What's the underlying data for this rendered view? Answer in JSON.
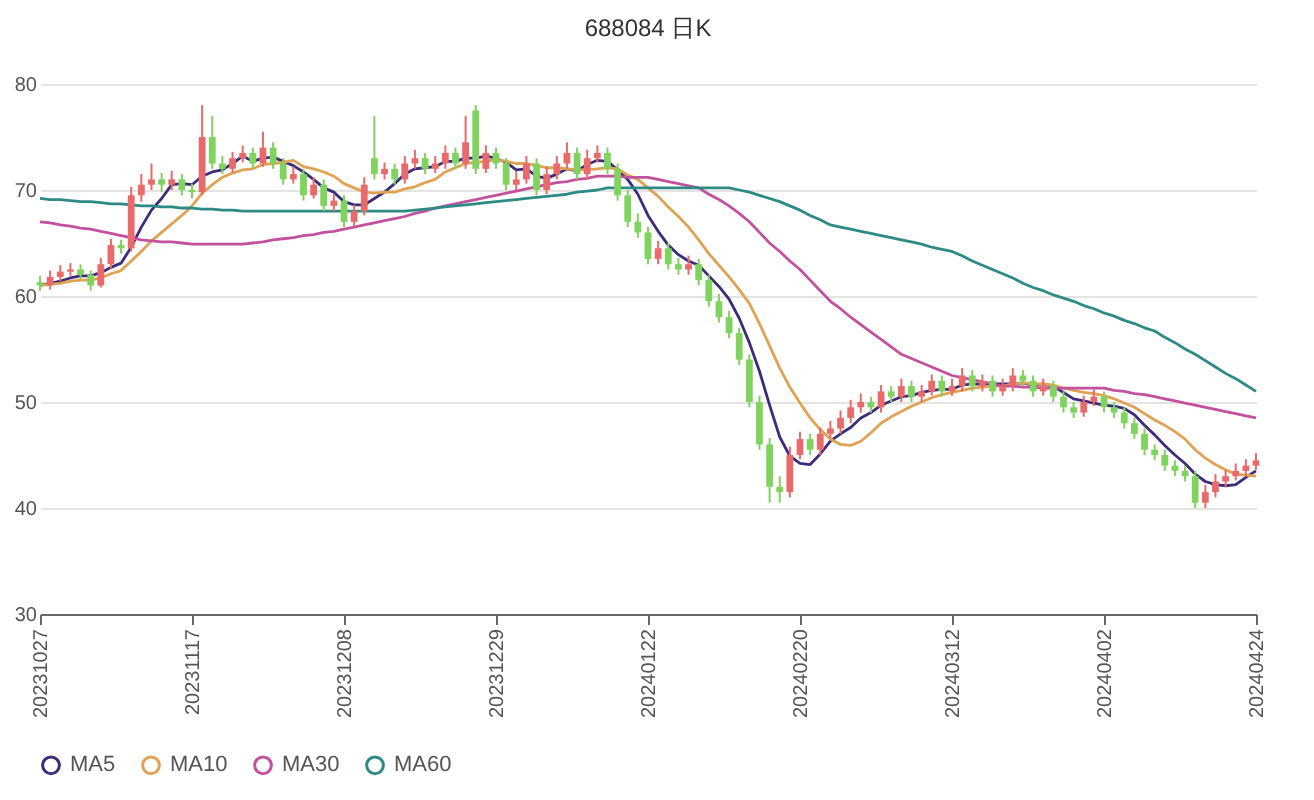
{
  "chart_data": {
    "type": "candlestick",
    "title": "688084  日K",
    "categories": [
      "20231027",
      null,
      null,
      null,
      null,
      null,
      null,
      null,
      null,
      null,
      null,
      null,
      null,
      null,
      null,
      "20231117",
      null,
      null,
      null,
      null,
      null,
      null,
      null,
      null,
      null,
      null,
      null,
      null,
      null,
      null,
      "20231208",
      null,
      null,
      null,
      null,
      null,
      null,
      null,
      null,
      null,
      null,
      null,
      null,
      null,
      null,
      "20231229",
      null,
      null,
      null,
      null,
      null,
      null,
      null,
      null,
      null,
      null,
      null,
      null,
      null,
      null,
      "20240122",
      null,
      null,
      null,
      null,
      null,
      null,
      null,
      null,
      null,
      null,
      null,
      null,
      null,
      null,
      "20240220",
      null,
      null,
      null,
      null,
      null,
      null,
      null,
      null,
      null,
      null,
      null,
      null,
      null,
      null,
      "20240312",
      null,
      null,
      null,
      null,
      null,
      null,
      null,
      null,
      null,
      null,
      null,
      null,
      null,
      null,
      "20240402",
      null,
      null,
      null,
      null,
      null,
      null,
      null,
      null,
      null,
      null,
      null,
      null,
      null,
      null,
      "20240424"
    ],
    "ohlc": [
      [
        61.3,
        61.9,
        60.5,
        61.0
      ],
      [
        61.0,
        62.4,
        60.6,
        61.8
      ],
      [
        61.8,
        62.9,
        61.4,
        62.3
      ],
      [
        62.3,
        63.1,
        61.9,
        62.5
      ],
      [
        62.5,
        63.0,
        61.6,
        62.0
      ],
      [
        62.0,
        62.4,
        60.5,
        61.0
      ],
      [
        61.0,
        63.6,
        60.8,
        63.0
      ],
      [
        63.0,
        65.4,
        62.6,
        64.8
      ],
      [
        64.8,
        65.3,
        64.0,
        64.5
      ],
      [
        64.5,
        70.3,
        64.2,
        69.5
      ],
      [
        69.5,
        71.5,
        68.9,
        70.5
      ],
      [
        70.5,
        72.5,
        70.0,
        71.0
      ],
      [
        71.0,
        71.6,
        69.8,
        70.5
      ],
      [
        70.5,
        71.8,
        70.0,
        71.0
      ],
      [
        71.0,
        71.5,
        69.5,
        70.0
      ],
      [
        70.0,
        70.6,
        69.2,
        69.8
      ],
      [
        69.8,
        78.0,
        69.5,
        75.0
      ],
      [
        75.0,
        77.0,
        72.0,
        72.5
      ],
      [
        72.5,
        73.2,
        71.5,
        72.0
      ],
      [
        72.0,
        73.6,
        71.6,
        73.0
      ],
      [
        73.0,
        74.2,
        72.6,
        73.5
      ],
      [
        73.5,
        74.0,
        72.0,
        72.5
      ],
      [
        72.5,
        75.5,
        72.2,
        74.0
      ],
      [
        74.0,
        74.5,
        72.0,
        72.5
      ],
      [
        72.5,
        73.0,
        70.5,
        71.0
      ],
      [
        71.0,
        72.2,
        70.6,
        71.5
      ],
      [
        71.5,
        72.0,
        69.0,
        69.5
      ],
      [
        69.5,
        71.2,
        69.2,
        70.5
      ],
      [
        70.5,
        71.0,
        68.0,
        68.5
      ],
      [
        68.5,
        69.6,
        68.0,
        69.0
      ],
      [
        69.0,
        69.5,
        66.5,
        67.0
      ],
      [
        67.0,
        68.6,
        66.6,
        68.0
      ],
      [
        68.0,
        71.2,
        67.6,
        70.5
      ],
      [
        73.0,
        77.0,
        71.0,
        71.5
      ],
      [
        71.5,
        72.6,
        71.0,
        72.0
      ],
      [
        72.0,
        72.5,
        70.5,
        71.0
      ],
      [
        71.0,
        73.2,
        70.6,
        72.5
      ],
      [
        72.5,
        73.8,
        72.0,
        73.0
      ],
      [
        73.0,
        73.5,
        71.5,
        72.0
      ],
      [
        72.0,
        73.2,
        71.6,
        72.5
      ],
      [
        72.5,
        74.2,
        72.0,
        73.5
      ],
      [
        73.5,
        74.0,
        72.0,
        72.5
      ],
      [
        72.5,
        77.0,
        72.0,
        74.5
      ],
      [
        77.5,
        78.0,
        71.5,
        72.0
      ],
      [
        72.0,
        74.2,
        71.6,
        73.5
      ],
      [
        73.5,
        74.0,
        72.0,
        72.5
      ],
      [
        72.5,
        73.0,
        70.0,
        70.5
      ],
      [
        70.5,
        71.8,
        70.0,
        71.0
      ],
      [
        71.0,
        73.2,
        70.6,
        72.5
      ],
      [
        72.5,
        73.0,
        69.5,
        70.0
      ],
      [
        70.0,
        72.2,
        69.6,
        71.5
      ],
      [
        71.5,
        73.2,
        71.0,
        72.5
      ],
      [
        72.5,
        74.5,
        72.0,
        73.5
      ],
      [
        73.5,
        74.0,
        71.0,
        71.5
      ],
      [
        71.5,
        73.8,
        71.0,
        73.0
      ],
      [
        73.0,
        74.2,
        72.6,
        73.5
      ],
      [
        73.5,
        74.0,
        71.5,
        72.0
      ],
      [
        72.0,
        72.5,
        69.0,
        69.5
      ],
      [
        69.5,
        70.0,
        66.5,
        67.0
      ],
      [
        67.0,
        67.8,
        65.5,
        66.0
      ],
      [
        66.0,
        66.5,
        63.0,
        63.5
      ],
      [
        63.5,
        65.2,
        63.0,
        64.5
      ],
      [
        64.5,
        65.0,
        62.5,
        63.0
      ],
      [
        63.0,
        63.6,
        62.0,
        62.5
      ],
      [
        62.5,
        63.8,
        62.0,
        63.0
      ],
      [
        63.0,
        63.5,
        61.0,
        61.5
      ],
      [
        61.5,
        62.0,
        59.0,
        59.5
      ],
      [
        59.5,
        60.2,
        57.5,
        58.0
      ],
      [
        58.0,
        58.6,
        56.0,
        56.5
      ],
      [
        56.5,
        57.0,
        53.5,
        54.0
      ],
      [
        54.0,
        54.5,
        49.5,
        50.0
      ],
      [
        50.0,
        50.6,
        45.5,
        46.0
      ],
      [
        46.0,
        46.6,
        40.5,
        42.0
      ],
      [
        42.0,
        43.0,
        40.5,
        41.5
      ],
      [
        41.5,
        45.8,
        41.0,
        45.0
      ],
      [
        45.0,
        47.2,
        44.6,
        46.5
      ],
      [
        46.5,
        47.0,
        45.0,
        45.5
      ],
      [
        45.5,
        47.6,
        45.0,
        47.0
      ],
      [
        47.0,
        48.2,
        46.6,
        47.5
      ],
      [
        47.5,
        49.2,
        47.0,
        48.5
      ],
      [
        48.5,
        50.2,
        48.0,
        49.5
      ],
      [
        49.5,
        50.8,
        49.0,
        50.0
      ],
      [
        50.0,
        50.5,
        49.0,
        49.5
      ],
      [
        49.5,
        51.6,
        49.0,
        51.0
      ],
      [
        51.0,
        51.5,
        50.0,
        50.5
      ],
      [
        50.5,
        52.2,
        50.0,
        51.5
      ],
      [
        51.5,
        52.0,
        50.0,
        50.5
      ],
      [
        50.5,
        51.6,
        50.0,
        51.0
      ],
      [
        51.0,
        52.6,
        50.6,
        52.0
      ],
      [
        52.0,
        52.5,
        50.5,
        51.0
      ],
      [
        51.0,
        52.2,
        50.6,
        51.5
      ],
      [
        51.5,
        53.2,
        51.0,
        52.5
      ],
      [
        52.5,
        53.0,
        51.0,
        51.5
      ],
      [
        51.5,
        52.6,
        51.0,
        52.0
      ],
      [
        52.0,
        52.5,
        50.5,
        51.0
      ],
      [
        51.0,
        52.2,
        50.6,
        51.5
      ],
      [
        51.5,
        53.2,
        51.0,
        52.5
      ],
      [
        52.5,
        53.0,
        51.5,
        52.0
      ],
      [
        52.0,
        52.5,
        50.5,
        51.0
      ],
      [
        51.0,
        52.2,
        50.6,
        51.5
      ],
      [
        51.5,
        52.0,
        50.0,
        50.5
      ],
      [
        50.5,
        51.0,
        49.0,
        49.5
      ],
      [
        49.5,
        50.0,
        48.5,
        49.0
      ],
      [
        49.0,
        50.6,
        48.6,
        50.0
      ],
      [
        50.0,
        51.2,
        49.6,
        50.5
      ],
      [
        50.5,
        51.0,
        49.0,
        49.5
      ],
      [
        49.5,
        50.0,
        48.5,
        49.0
      ],
      [
        49.0,
        49.5,
        47.5,
        48.0
      ],
      [
        48.0,
        48.5,
        46.5,
        47.0
      ],
      [
        47.0,
        47.5,
        45.0,
        45.5
      ],
      [
        45.5,
        46.0,
        44.5,
        45.0
      ],
      [
        45.0,
        45.5,
        43.5,
        44.0
      ],
      [
        44.0,
        44.5,
        43.0,
        43.5
      ],
      [
        43.5,
        44.0,
        42.5,
        43.0
      ],
      [
        43.0,
        43.5,
        40.0,
        40.5
      ],
      [
        40.5,
        42.2,
        40.0,
        41.5
      ],
      [
        41.5,
        43.2,
        41.0,
        42.5
      ],
      [
        42.5,
        43.6,
        42.0,
        43.0
      ],
      [
        43.0,
        44.2,
        42.6,
        43.5
      ],
      [
        43.5,
        44.6,
        43.0,
        44.0
      ],
      [
        44.0,
        45.2,
        43.6,
        44.5
      ]
    ],
    "colors": [
      "#7fd35e",
      "#e86a6a",
      "#e86a6a",
      "#e86a6a",
      "#7fd35e",
      "#7fd35e",
      "#e86a6a",
      "#e86a6a",
      "#7fd35e",
      "#e86a6a",
      "#e86a6a",
      "#e86a6a",
      "#7fd35e",
      "#e86a6a",
      "#7fd35e",
      "#7fd35e",
      "#e86a6a",
      "#7fd35e",
      "#7fd35e",
      "#e86a6a",
      "#e86a6a",
      "#7fd35e",
      "#e86a6a",
      "#7fd35e",
      "#7fd35e",
      "#e86a6a",
      "#7fd35e",
      "#e86a6a",
      "#7fd35e",
      "#e86a6a",
      "#7fd35e",
      "#e86a6a",
      "#e86a6a",
      "#7fd35e",
      "#e86a6a",
      "#7fd35e",
      "#e86a6a",
      "#e86a6a",
      "#7fd35e",
      "#e86a6a",
      "#e86a6a",
      "#7fd35e",
      "#e86a6a",
      "#7fd35e",
      "#e86a6a",
      "#7fd35e",
      "#7fd35e",
      "#e86a6a",
      "#e86a6a",
      "#7fd35e",
      "#e86a6a",
      "#e86a6a",
      "#e86a6a",
      "#7fd35e",
      "#e86a6a",
      "#e86a6a",
      "#7fd35e",
      "#7fd35e",
      "#7fd35e",
      "#7fd35e",
      "#7fd35e",
      "#e86a6a",
      "#7fd35e",
      "#7fd35e",
      "#e86a6a",
      "#7fd35e",
      "#7fd35e",
      "#7fd35e",
      "#7fd35e",
      "#7fd35e",
      "#7fd35e",
      "#7fd35e",
      "#7fd35e",
      "#7fd35e",
      "#e86a6a",
      "#e86a6a",
      "#7fd35e",
      "#e86a6a",
      "#e86a6a",
      "#e86a6a",
      "#e86a6a",
      "#e86a6a",
      "#7fd35e",
      "#e86a6a",
      "#7fd35e",
      "#e86a6a",
      "#7fd35e",
      "#e86a6a",
      "#e86a6a",
      "#7fd35e",
      "#e86a6a",
      "#e86a6a",
      "#7fd35e",
      "#e86a6a",
      "#7fd35e",
      "#e86a6a",
      "#e86a6a",
      "#7fd35e",
      "#7fd35e",
      "#e86a6a",
      "#7fd35e",
      "#7fd35e",
      "#7fd35e",
      "#e86a6a",
      "#e86a6a",
      "#7fd35e",
      "#7fd35e",
      "#7fd35e",
      "#7fd35e",
      "#7fd35e",
      "#7fd35e",
      "#7fd35e",
      "#7fd35e",
      "#7fd35e",
      "#7fd35e",
      "#e86a6a",
      "#e86a6a",
      "#e86a6a",
      "#e86a6a",
      "#e86a6a",
      "#e86a6a"
    ],
    "series": [
      {
        "type": "line",
        "name": "MA5",
        "color": "#3d2c7c",
        "values": [
          61.0,
          61.2,
          61.4,
          61.7,
          61.9,
          61.9,
          62.2,
          62.7,
          63.1,
          64.6,
          66.5,
          68.1,
          69.2,
          70.5,
          70.6,
          70.5,
          71.3,
          71.7,
          71.9,
          72.5,
          73.2,
          72.7,
          73.0,
          73.1,
          72.7,
          72.3,
          71.7,
          71.0,
          70.2,
          69.8,
          68.9,
          68.6,
          68.6,
          69.2,
          69.8,
          70.6,
          71.5,
          72.0,
          72.1,
          72.2,
          72.7,
          72.7,
          73.0,
          73.0,
          73.2,
          73.0,
          72.6,
          71.9,
          72.0,
          71.3,
          71.1,
          71.5,
          72.0,
          71.8,
          72.4,
          72.8,
          72.7,
          71.9,
          71.0,
          69.6,
          67.6,
          66.1,
          64.8,
          63.9,
          63.3,
          62.9,
          61.9,
          60.9,
          59.7,
          57.9,
          55.6,
          52.9,
          49.7,
          46.7,
          44.9,
          44.2,
          44.1,
          45.1,
          46.3,
          47.0,
          47.6,
          48.5,
          49.0,
          49.7,
          50.1,
          50.5,
          50.6,
          50.9,
          51.1,
          51.2,
          51.2,
          51.6,
          51.7,
          51.7,
          51.7,
          51.7,
          51.7,
          51.8,
          51.6,
          51.7,
          51.5,
          50.9,
          50.3,
          50.1,
          49.9,
          49.7,
          49.6,
          49.4,
          48.8,
          47.8,
          46.9,
          45.9,
          45.0,
          44.2,
          43.2,
          42.5,
          42.2,
          42.1,
          42.2,
          42.9,
          43.5
        ]
      },
      {
        "type": "line",
        "name": "MA10",
        "color": "#e0a353",
        "values": [
          61.0,
          61.1,
          61.2,
          61.4,
          61.5,
          61.5,
          61.7,
          62.1,
          62.4,
          63.3,
          64.2,
          65.2,
          66.0,
          66.8,
          67.6,
          68.5,
          69.7,
          70.5,
          71.2,
          71.6,
          71.9,
          72.0,
          72.4,
          72.5,
          72.6,
          72.8,
          72.2,
          72.0,
          71.7,
          71.3,
          70.6,
          70.2,
          69.8,
          69.7,
          69.8,
          69.8,
          70.1,
          70.3,
          70.7,
          71.0,
          71.7,
          72.1,
          72.5,
          72.6,
          72.7,
          72.9,
          72.7,
          72.5,
          72.5,
          72.3,
          72.1,
          72.1,
          72.0,
          71.9,
          71.9,
          72.0,
          72.1,
          72.0,
          71.4,
          71.0,
          70.2,
          69.4,
          68.4,
          67.5,
          66.5,
          65.3,
          64.0,
          62.9,
          61.8,
          60.6,
          59.3,
          57.4,
          55.3,
          53.2,
          51.4,
          49.9,
          48.5,
          47.4,
          46.5,
          46.0,
          45.9,
          46.3,
          47.1,
          48.0,
          48.6,
          49.1,
          49.6,
          50.0,
          50.4,
          50.7,
          50.9,
          51.1,
          51.3,
          51.4,
          51.5,
          51.5,
          51.7,
          51.8,
          51.7,
          51.7,
          51.6,
          51.3,
          51.1,
          50.9,
          50.8,
          50.6,
          50.3,
          49.9,
          49.5,
          48.9,
          48.3,
          47.8,
          47.2,
          46.5,
          45.5,
          44.7,
          44.1,
          43.6,
          43.2,
          43.1,
          43.0
        ]
      },
      {
        "type": "line",
        "name": "MA30",
        "color": "#c2519e",
        "values": [
          67.0,
          66.9,
          66.7,
          66.6,
          66.4,
          66.3,
          66.1,
          65.9,
          65.7,
          65.5,
          65.3,
          65.2,
          65.1,
          65.1,
          65.0,
          64.9,
          64.9,
          64.9,
          64.9,
          64.9,
          64.9,
          65.0,
          65.1,
          65.3,
          65.4,
          65.5,
          65.7,
          65.8,
          66.0,
          66.1,
          66.3,
          66.5,
          66.7,
          66.9,
          67.1,
          67.3,
          67.5,
          67.8,
          68.0,
          68.3,
          68.5,
          68.7,
          68.9,
          69.1,
          69.3,
          69.5,
          69.7,
          69.9,
          70.1,
          70.3,
          70.5,
          70.7,
          70.8,
          71.0,
          71.1,
          71.3,
          71.3,
          71.3,
          71.2,
          71.2,
          71.2,
          71.0,
          70.8,
          70.6,
          70.4,
          70.2,
          69.6,
          69.1,
          68.5,
          67.8,
          67.0,
          66.0,
          65.0,
          64.2,
          63.3,
          62.5,
          61.5,
          60.5,
          59.5,
          58.8,
          58.0,
          57.3,
          56.6,
          55.9,
          55.2,
          54.5,
          54.1,
          53.7,
          53.3,
          52.9,
          52.5,
          52.3,
          52.1,
          51.9,
          51.7,
          51.5,
          51.5,
          51.4,
          51.4,
          51.3,
          51.3,
          51.3,
          51.3,
          51.3,
          51.3,
          51.3,
          51.1,
          51.0,
          50.8,
          50.7,
          50.5,
          50.3,
          50.1,
          49.9,
          49.7,
          49.5,
          49.3,
          49.1,
          48.9,
          48.7,
          48.5
        ]
      },
      {
        "type": "line",
        "name": "MA60",
        "color": "#2e8a84",
        "values": [
          69.2,
          69.1,
          69.1,
          69.0,
          68.9,
          68.9,
          68.8,
          68.7,
          68.7,
          68.6,
          68.5,
          68.5,
          68.4,
          68.4,
          68.3,
          68.3,
          68.2,
          68.2,
          68.1,
          68.1,
          68.0,
          68.0,
          68.0,
          68.0,
          68.0,
          68.0,
          68.0,
          68.0,
          68.0,
          68.0,
          68.0,
          68.0,
          68.0,
          68.0,
          68.0,
          68.0,
          68.0,
          68.1,
          68.2,
          68.3,
          68.4,
          68.5,
          68.6,
          68.7,
          68.8,
          68.9,
          69.0,
          69.1,
          69.2,
          69.3,
          69.4,
          69.5,
          69.6,
          69.8,
          69.9,
          70.0,
          70.2,
          70.2,
          70.2,
          70.2,
          70.2,
          70.2,
          70.2,
          70.2,
          70.2,
          70.2,
          70.2,
          70.2,
          70.2,
          70.0,
          69.8,
          69.5,
          69.2,
          68.9,
          68.5,
          68.1,
          67.6,
          67.2,
          66.7,
          66.5,
          66.3,
          66.1,
          65.9,
          65.7,
          65.5,
          65.3,
          65.1,
          64.9,
          64.6,
          64.4,
          64.2,
          63.8,
          63.3,
          62.9,
          62.5,
          62.1,
          61.7,
          61.2,
          60.8,
          60.5,
          60.1,
          59.8,
          59.5,
          59.1,
          58.8,
          58.4,
          58.1,
          57.7,
          57.4,
          57.0,
          56.7,
          56.1,
          55.6,
          55.0,
          54.5,
          53.9,
          53.3,
          52.7,
          52.2,
          51.6,
          51.0
        ]
      }
    ],
    "ylim": [
      30,
      80
    ],
    "yticks": [
      30,
      40,
      50,
      60,
      70,
      80
    ],
    "grid": "y",
    "legend": "bottom"
  }
}
